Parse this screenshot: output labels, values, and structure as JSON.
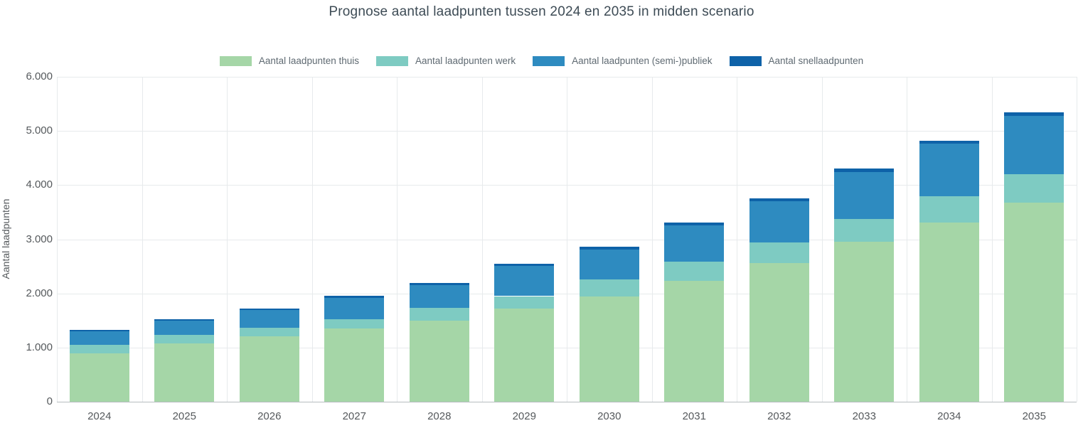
{
  "title": "Prognose aantal laadpunten tussen 2024 en 2035 in midden scenario",
  "chart_data": {
    "type": "bar",
    "stacked": true,
    "title": "Prognose aantal laadpunten tussen 2024 en 2035 in midden scenario",
    "xlabel": "",
    "ylabel": "Aantal laadpunten",
    "ylim": [
      0,
      6000
    ],
    "ytick_step": 1000,
    "ytick_labels": [
      "0",
      "1.000",
      "2.000",
      "3.000",
      "4.000",
      "5.000",
      "6.000"
    ],
    "grid": true,
    "legend_position": "top",
    "categories": [
      "2024",
      "2025",
      "2026",
      "2027",
      "2028",
      "2029",
      "2030",
      "2031",
      "2032",
      "2033",
      "2034",
      "2035"
    ],
    "series": [
      {
        "name": "Aantal laadpunten thuis",
        "slug": "thuis",
        "color": "#a5d6a7",
        "values": [
          890,
          1075,
          1205,
          1350,
          1495,
          1725,
          1940,
          2230,
          2555,
          2950,
          3305,
          3675
        ]
      },
      {
        "name": "Aantal laadpunten werk",
        "slug": "werk",
        "color": "#7ecbc2",
        "values": [
          160,
          155,
          160,
          170,
          235,
          225,
          315,
          355,
          380,
          420,
          485,
          525
        ]
      },
      {
        "name": "Aantal laadpunten (semi-)publiek",
        "slug": "semi-publiek",
        "color": "#2e8bc0",
        "values": [
          250,
          265,
          330,
          400,
          425,
          555,
          560,
          670,
          765,
          875,
          970,
          1075
        ]
      },
      {
        "name": "Aantal snellaadpunten",
        "slug": "snellaadpunten",
        "color": "#0e62a8",
        "values": [
          25,
          25,
          30,
          35,
          35,
          40,
          45,
          50,
          55,
          60,
          65,
          70
        ]
      }
    ],
    "totals": [
      1325,
      1520,
      1725,
      1955,
      2190,
      2545,
      2860,
      3305,
      3755,
      4305,
      4825,
      5345
    ]
  }
}
